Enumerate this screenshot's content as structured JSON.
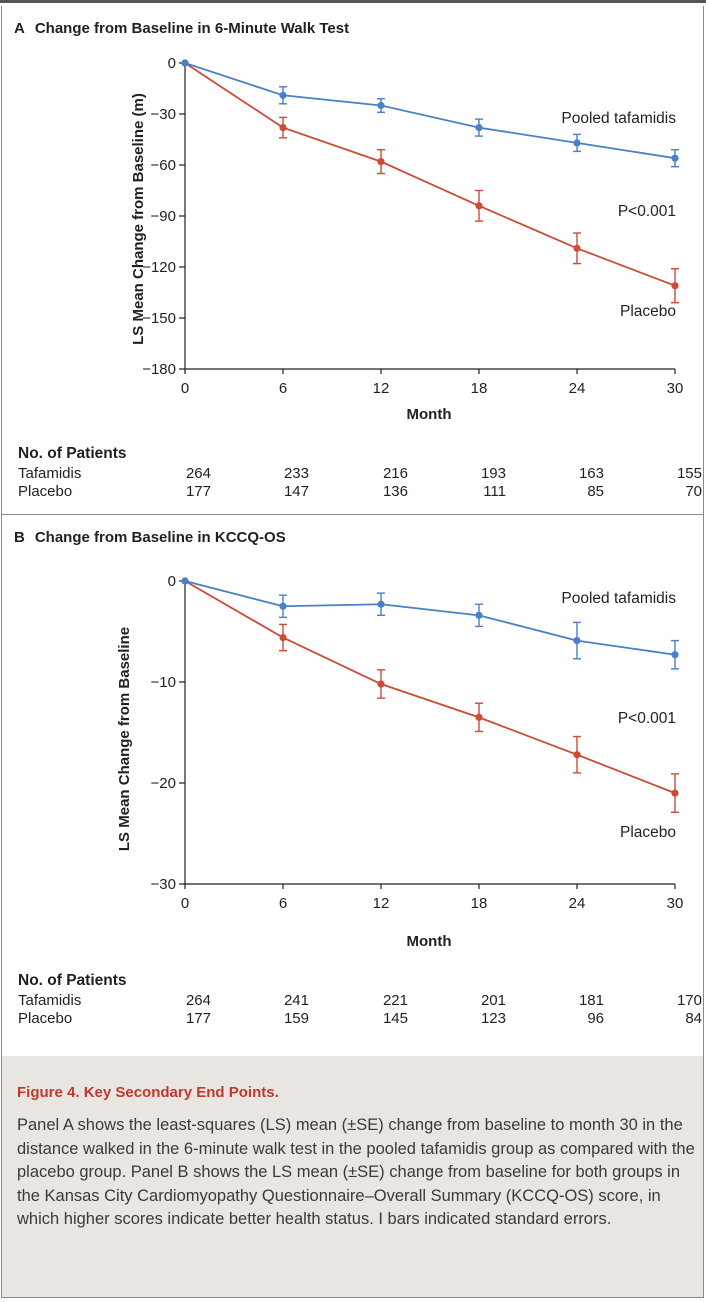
{
  "colors": {
    "tafamidis": "#4a7fc9",
    "placebo": "#cc4b37",
    "axis": "#231f20",
    "caption_title": "#c0392b",
    "caption_bg": "#e9e6e1"
  },
  "panel_a": {
    "letter": "A",
    "title": "Change from Baseline in 6-Minute Walk Test",
    "ylabel": "LS Mean Change from Baseline (m)",
    "xlabel": "Month",
    "annotations": {
      "tafamidis_label": "Pooled tafamidis",
      "pvalue": "P<0.001",
      "placebo_label": "Placebo"
    },
    "patients": {
      "heading": "No. of Patients",
      "rows": [
        {
          "label": "Tafamidis",
          "values": [
            "264",
            "233",
            "216",
            "193",
            "163",
            "155"
          ]
        },
        {
          "label": "Placebo",
          "values": [
            "177",
            "147",
            "136",
            "111",
            "85",
            "70"
          ]
        }
      ]
    }
  },
  "panel_b": {
    "letter": "B",
    "title": "Change from Baseline in KCCQ-OS",
    "ylabel": "LS Mean Change from Baseline",
    "xlabel": "Month",
    "annotations": {
      "tafamidis_label": "Pooled tafamidis",
      "pvalue": "P<0.001",
      "placebo_label": "Placebo"
    },
    "patients": {
      "heading": "No. of Patients",
      "rows": [
        {
          "label": "Tafamidis",
          "values": [
            "264",
            "241",
            "221",
            "201",
            "181",
            "170"
          ]
        },
        {
          "label": "Placebo",
          "values": [
            "177",
            "159",
            "145",
            "123",
            "96",
            "84"
          ]
        }
      ]
    }
  },
  "chart_data": [
    {
      "type": "line",
      "title": "Change from Baseline in 6-Minute Walk Test",
      "xlabel": "Month",
      "ylabel": "LS Mean Change from Baseline (m)",
      "x": [
        0,
        6,
        12,
        18,
        24,
        30
      ],
      "xticks": [
        "0",
        "6",
        "12",
        "18",
        "24",
        "30"
      ],
      "yticks": [
        "0",
        "−30",
        "−60",
        "−90",
        "−120",
        "−150",
        "−180"
      ],
      "ytick_values": [
        0,
        -30,
        -60,
        -90,
        -120,
        -150,
        -180
      ],
      "xlim": [
        0,
        30
      ],
      "ylim": [
        -180,
        0
      ],
      "grid": false,
      "series": [
        {
          "name": "Pooled tafamidis",
          "color": "#4a7fc9",
          "values": [
            0,
            -19,
            -25,
            -38,
            -47,
            -56
          ],
          "se": [
            0,
            5,
            4,
            5,
            5,
            5
          ]
        },
        {
          "name": "Placebo",
          "color": "#cc4b37",
          "values": [
            0,
            -38,
            -58,
            -84,
            -109,
            -131
          ],
          "se": [
            0,
            6,
            7,
            9,
            9,
            10
          ]
        }
      ]
    },
    {
      "type": "line",
      "title": "Change from Baseline in KCCQ-OS",
      "xlabel": "Month",
      "ylabel": "LS Mean Change from Baseline",
      "x": [
        0,
        6,
        12,
        18,
        24,
        30
      ],
      "xticks": [
        "0",
        "6",
        "12",
        "18",
        "24",
        "30"
      ],
      "yticks": [
        "0",
        "−10",
        "−20",
        "−30"
      ],
      "ytick_values": [
        0,
        -10,
        -20,
        -30
      ],
      "xlim": [
        0,
        30
      ],
      "ylim": [
        -30,
        0
      ],
      "grid": false,
      "series": [
        {
          "name": "Pooled tafamidis",
          "color": "#4a7fc9",
          "values": [
            0,
            -2.5,
            -2.3,
            -3.4,
            -5.9,
            -7.3
          ],
          "se": [
            0,
            1.1,
            1.1,
            1.1,
            1.8,
            1.4
          ]
        },
        {
          "name": "Placebo",
          "color": "#cc4b37",
          "values": [
            0,
            -5.6,
            -10.2,
            -13.5,
            -17.2,
            -21.0
          ],
          "se": [
            0,
            1.3,
            1.4,
            1.4,
            1.8,
            1.9
          ]
        }
      ]
    }
  ],
  "caption": {
    "title_prefix": "Figure 4.",
    "title_text": "Key Secondary End Points.",
    "body": "Panel A shows the least-squares (LS) mean (±SE) change from baseline to month 30 in the distance walked in the 6-minute walk test in the pooled tafamidis group as compared with the placebo group. Panel B shows the LS mean (±SE) change from baseline for both groups in the Kansas City Cardiomyopathy Questionnaire–Overall Summary (KCCQ-OS) score, in which higher scores indicate better health status. I bars indicated standard errors."
  }
}
